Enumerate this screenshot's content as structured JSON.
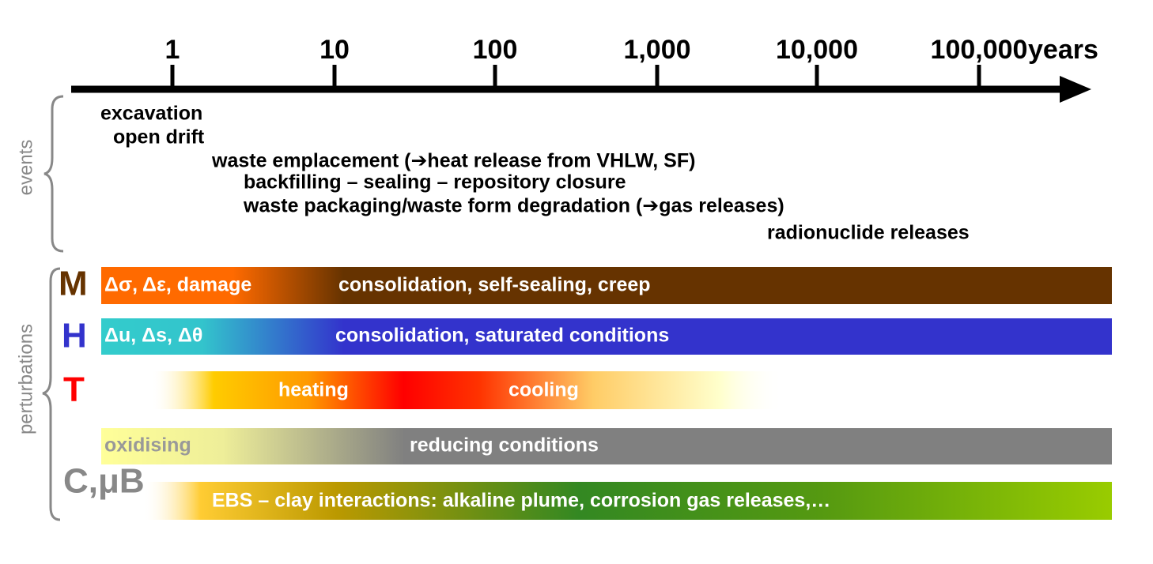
{
  "timeline": {
    "ticks": [
      "1",
      "10",
      "100",
      "1,000",
      "10,000",
      "100,000"
    ],
    "unit": "years"
  },
  "events": {
    "label": "events",
    "items": [
      "excavation",
      "open drift",
      "waste emplacement (➔heat release from VHLW, SF)",
      "backfilling – sealing – repository closure",
      "waste packaging/waste form degradation (➔gas releases)",
      "radionuclide releases"
    ]
  },
  "perturbations": {
    "label": "perturbations",
    "letters": [
      "M",
      "H",
      "T",
      "C,μB"
    ],
    "bars": [
      [
        "Δσ, Δε, damage",
        "consolidation, self-sealing, creep"
      ],
      [
        "Δu, Δs, Δθ",
        "consolidation, saturated conditions"
      ],
      [
        "heating",
        "cooling"
      ],
      [
        "oxidising",
        "reducing conditions"
      ],
      [
        "EBS – clay interactions: alkaline plume, corrosion gas releases,…"
      ]
    ]
  }
}
